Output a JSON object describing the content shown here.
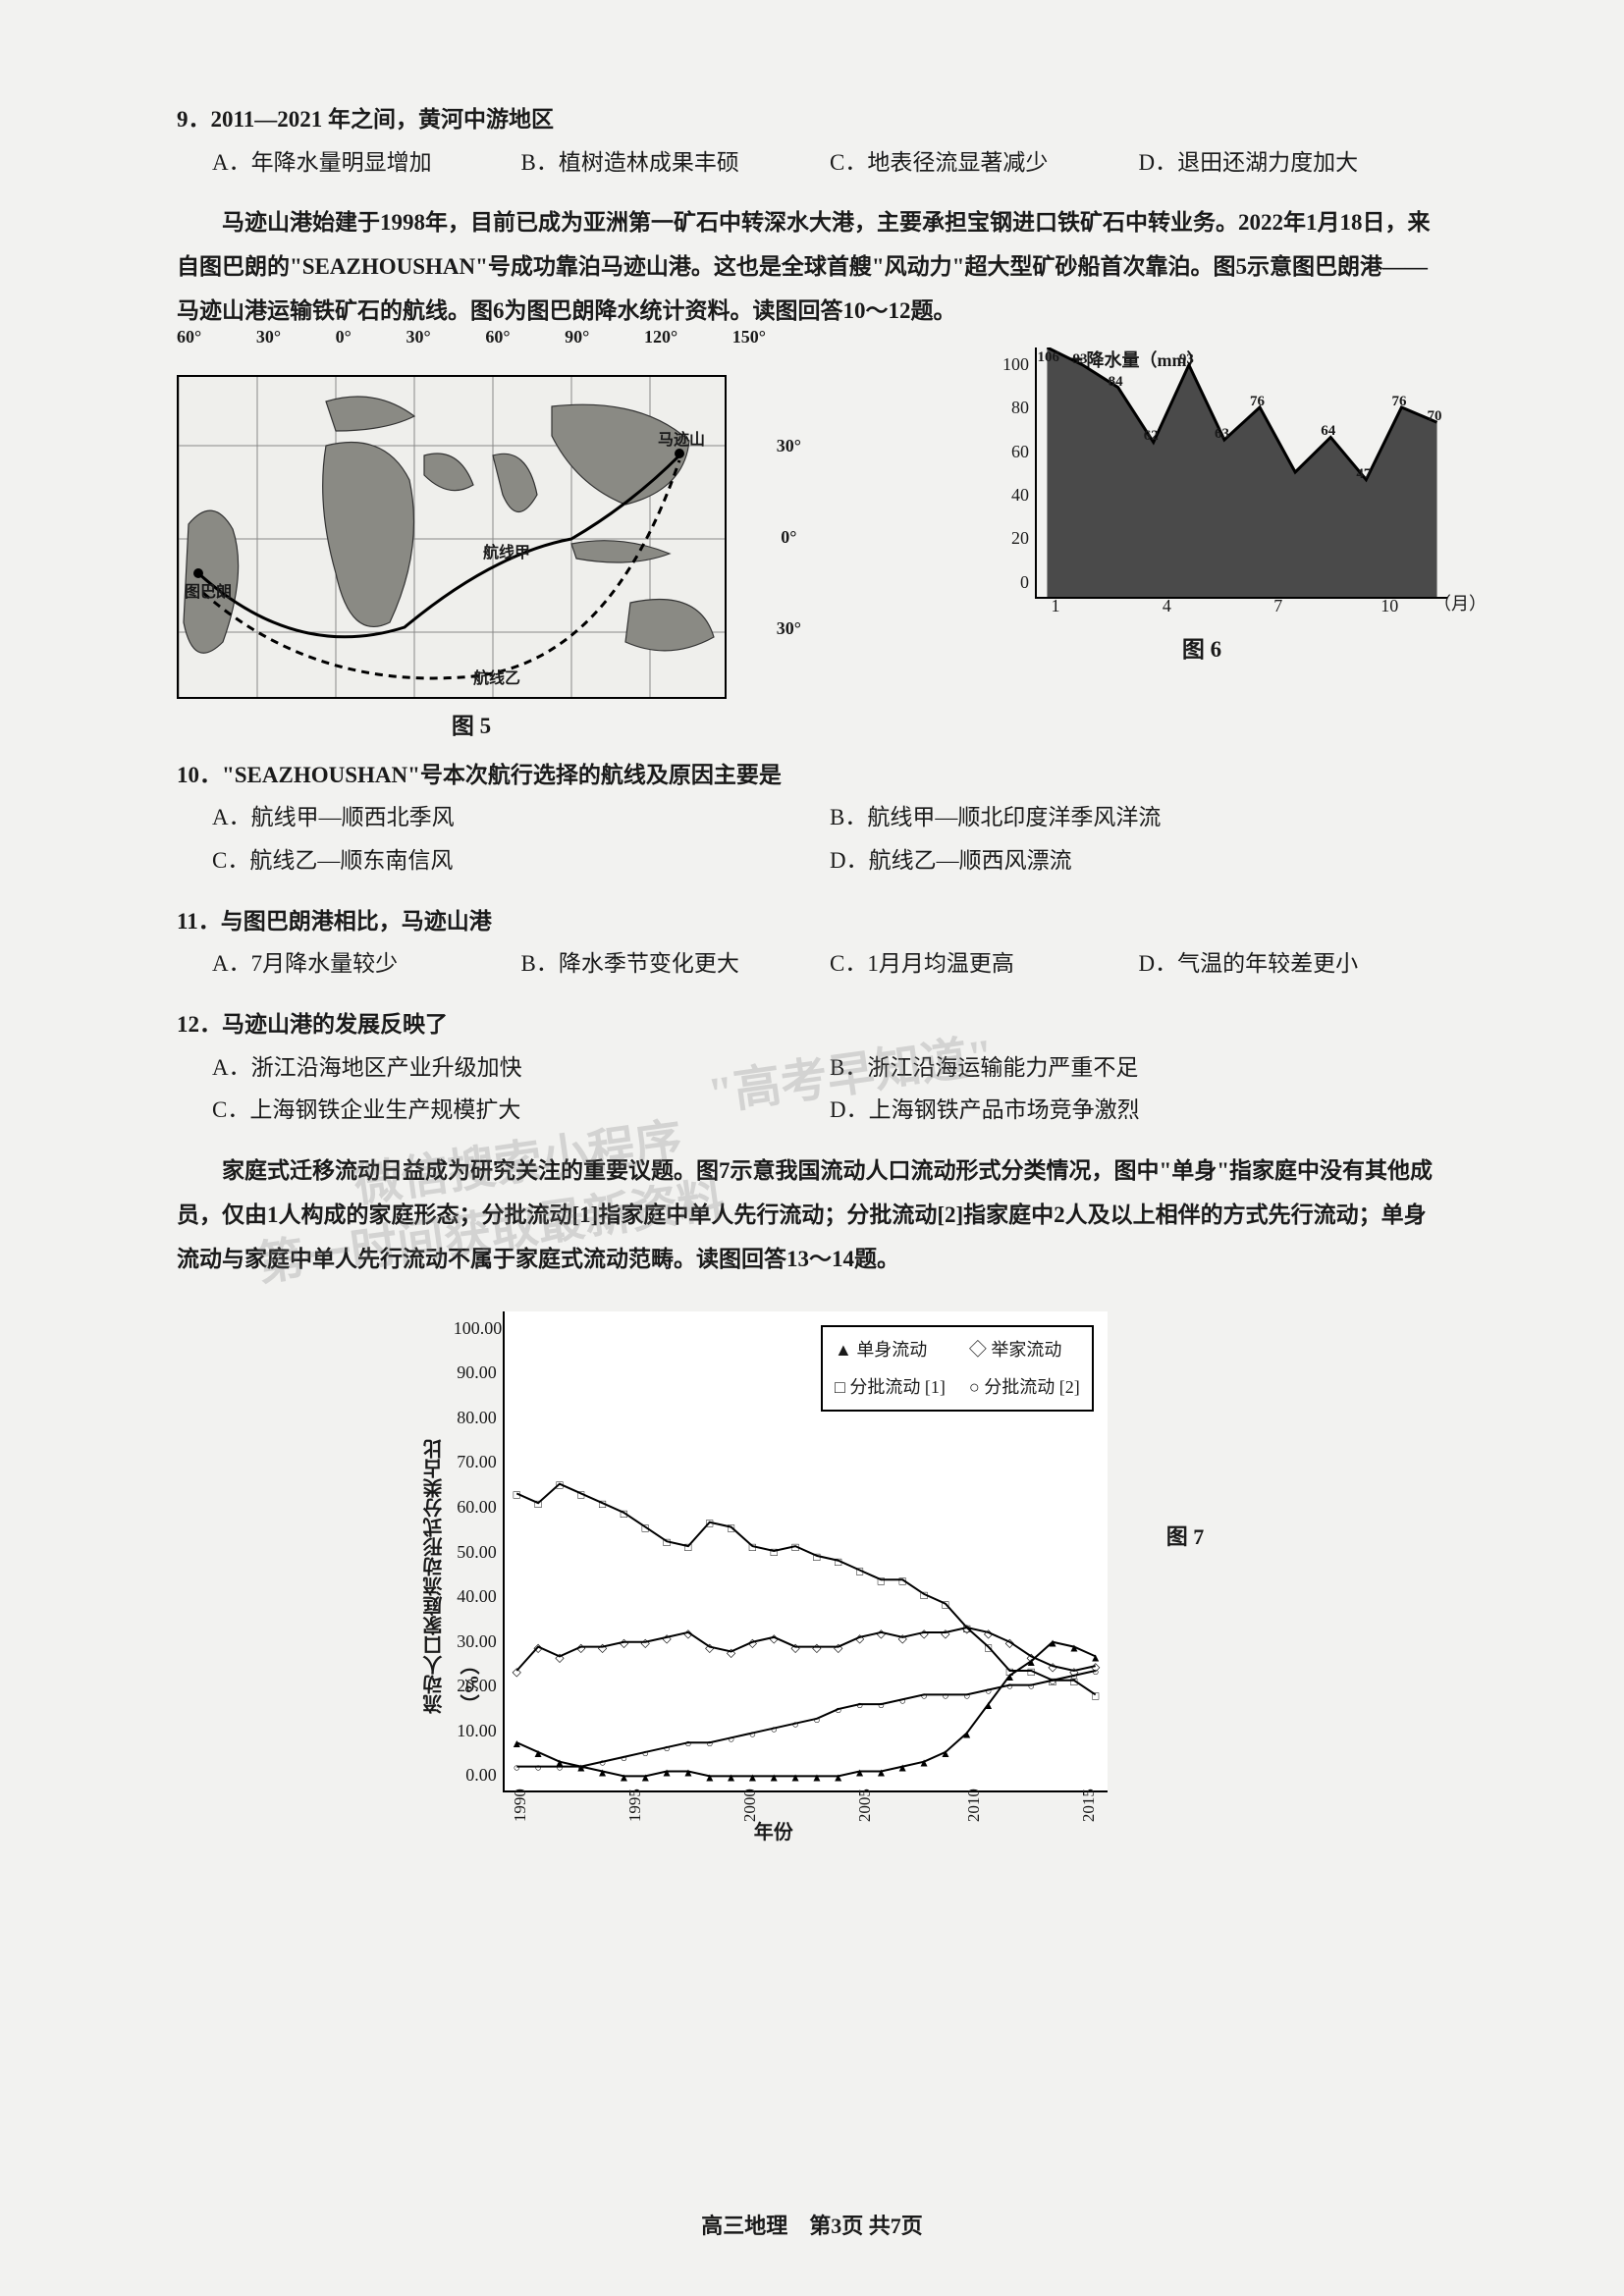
{
  "q9": {
    "stem": "9．2011—2021 年之间，黄河中游地区",
    "opts": {
      "A": "A．年降水量明显增加",
      "B": "B．植树造林成果丰硕",
      "C": "C．地表径流显著减少",
      "D": "D．退田还湖力度加大"
    }
  },
  "context1": "马迹山港始建于1998年，目前已成为亚洲第一矿石中转深水大港，主要承担宝钢进口铁矿石中转业务。2022年1月18日，来自图巴朗的\"SEAZHOUSHAN\"号成功靠泊马迹山港。这也是全球首艘\"风动力\"超大型矿砂船首次靠泊。图5示意图巴朗港——马迹山港运输铁矿石的航线。图6为图巴朗降水统计资料。读图回答10～12题。",
  "fig5": {
    "caption": "图 5",
    "lon_labels": [
      "60°",
      "30°",
      "0°",
      "30°",
      "60°",
      "90°",
      "120°",
      "150°"
    ],
    "lat_labels": [
      "30°",
      "0°",
      "30°"
    ],
    "place_majishan": "马迹山",
    "place_tubalang": "图巴朗",
    "route_jia": "航线甲",
    "route_yi": "航线乙"
  },
  "fig6": {
    "caption": "图 6",
    "legend": "━ 降水量（mm）",
    "ylim": [
      0,
      100
    ],
    "ytick_step": 20,
    "yticks": [
      "0",
      "20",
      "40",
      "60",
      "80",
      "100"
    ],
    "xticks": [
      "1",
      "4",
      "7",
      "10"
    ],
    "xlabel_end": "（月）",
    "months": [
      1,
      2,
      3,
      4,
      5,
      6,
      7,
      8,
      9,
      10,
      11,
      12
    ],
    "values": [
      106,
      93,
      84,
      62,
      93,
      63,
      76,
      50,
      64,
      47,
      76,
      70
    ],
    "data_labels": [
      "106",
      "93",
      "84",
      "62",
      "93",
      "63",
      "76",
      "",
      "64",
      "47",
      "76",
      "70"
    ],
    "fill_color": "#4a4a4a",
    "line_color": "#000000",
    "background_color": "#f2f2f0"
  },
  "q10": {
    "stem": "10．\"SEAZHOUSHAN\"号本次航行选择的航线及原因主要是",
    "opts": {
      "A": "A．航线甲—顺西北季风",
      "B": "B．航线甲—顺北印度洋季风洋流",
      "C": "C．航线乙—顺东南信风",
      "D": "D．航线乙—顺西风漂流"
    }
  },
  "q11": {
    "stem": "11．与图巴朗港相比，马迹山港",
    "opts": {
      "A": "A．7月降水量较少",
      "B": "B．降水季节变化更大",
      "C": "C．1月月均温更高",
      "D": "D．气温的年较差更小"
    }
  },
  "q12": {
    "stem": "12．马迹山港的发展反映了",
    "opts": {
      "A": "A．浙江沿海地区产业升级加快",
      "B": "B．浙江沿海运输能力严重不足",
      "C": "C．上海钢铁企业生产规模扩大",
      "D": "D．上海钢铁产品市场竞争激烈"
    }
  },
  "context2": "家庭式迁移流动日益成为研究关注的重要议题。图7示意我国流动人口流动形式分类情况，图中\"单身\"指家庭中没有其他成员，仅由1人构成的家庭形态；分批流动[1]指家庭中单人先行流动；分批流动[2]指家庭中2人及以上相伴的方式先行流动；单身流动与家庭中单人先行流动不属于家庭式流动范畴。读图回答13～14题。",
  "fig7": {
    "caption": "图 7",
    "ylim": [
      0,
      100
    ],
    "ytick_step": 10,
    "yticks": [
      "0.00",
      "10.00",
      "20.00",
      "30.00",
      "40.00",
      "50.00",
      "60.00",
      "70.00",
      "80.00",
      "90.00",
      "100.00"
    ],
    "ylabel": "流动人口家庭流动形式分类占比（%）",
    "xlabel": "年份",
    "xticks": [
      "1990",
      "1995",
      "2000",
      "2005",
      "2010",
      "2015"
    ],
    "years": [
      1990,
      1991,
      1992,
      1993,
      1994,
      1995,
      1996,
      1997,
      1998,
      1999,
      2000,
      2001,
      2002,
      2003,
      2004,
      2005,
      2006,
      2007,
      2008,
      2009,
      2010,
      2011,
      2012,
      2013,
      2014,
      2015,
      2016,
      2017
    ],
    "series": {
      "single": {
        "label": "单身流动",
        "marker": "triangle",
        "color": "#000000",
        "values": [
          10,
          8,
          6,
          5,
          4,
          3,
          3,
          4,
          4,
          3,
          3,
          3,
          3,
          3,
          3,
          3,
          4,
          4,
          5,
          6,
          8,
          12,
          18,
          24,
          27,
          31,
          30,
          28
        ]
      },
      "whole": {
        "label": "举家流动",
        "marker": "diamond",
        "color": "#000000",
        "values": [
          25,
          30,
          28,
          30,
          30,
          31,
          31,
          32,
          33,
          30,
          29,
          31,
          32,
          30,
          30,
          30,
          32,
          33,
          32,
          33,
          33,
          34,
          33,
          31,
          28,
          26,
          25,
          26
        ]
      },
      "batch1": {
        "label": "分批流动 [1]",
        "marker": "square",
        "color": "#000000",
        "values": [
          62,
          60,
          64,
          62,
          60,
          58,
          55,
          52,
          51,
          56,
          55,
          51,
          50,
          51,
          49,
          48,
          46,
          44,
          44,
          41,
          39,
          34,
          30,
          25,
          25,
          23,
          23,
          20
        ]
      },
      "batch2": {
        "label": "分批流动 [2]",
        "marker": "circle",
        "color": "#000000",
        "values": [
          5,
          5,
          5,
          5,
          6,
          7,
          8,
          9,
          10,
          10,
          11,
          12,
          13,
          14,
          15,
          17,
          18,
          18,
          19,
          20,
          20,
          20,
          21,
          22,
          22,
          23,
          24,
          25
        ]
      }
    },
    "line_color": "#000000",
    "background_color": "#ffffff",
    "grid_color": "#ffffff"
  },
  "watermarks": {
    "w1": "\"高考早知道\"",
    "w2": "微信搜索小程序",
    "w3": "第一时间获取最新资料"
  },
  "footer": "高三地理　第3页 共7页"
}
